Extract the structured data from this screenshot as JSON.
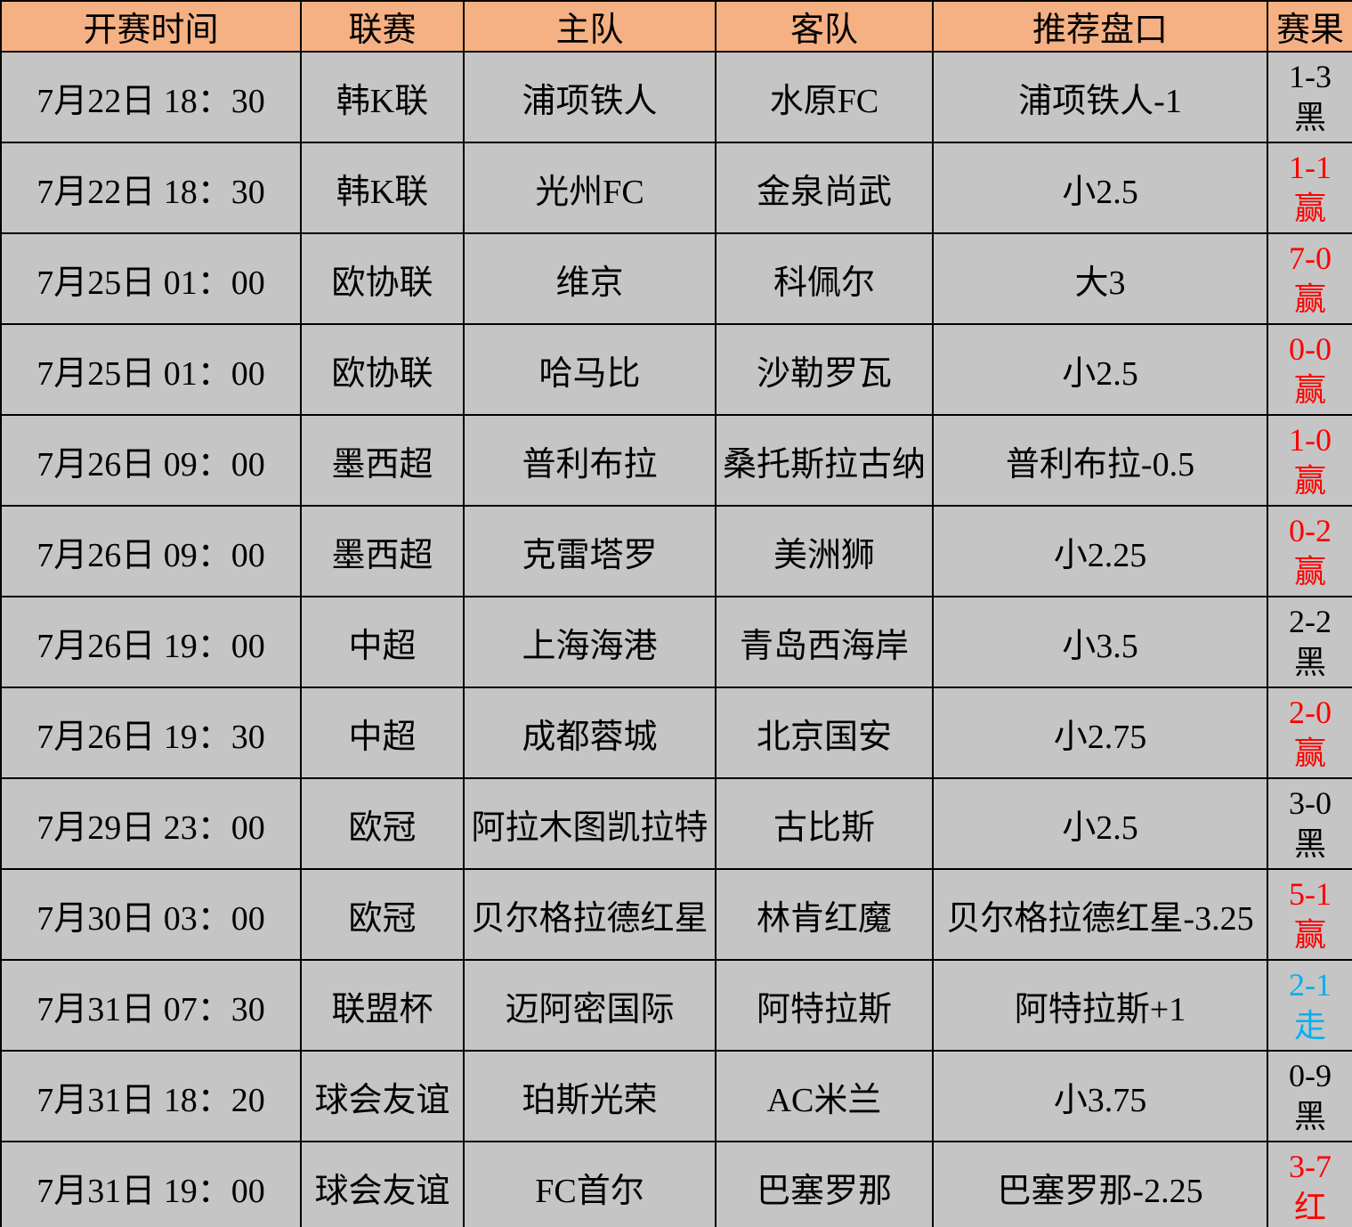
{
  "colors": {
    "header_bg": "#F5B183",
    "row_bg": "#C5C5C5",
    "result_black": "#000000",
    "result_red": "#FF0000",
    "result_blue": "#00B0F0"
  },
  "table": {
    "columns": [
      "开赛时间",
      "联赛",
      "主队",
      "客队",
      "推荐盘口",
      "赛果"
    ],
    "rows": [
      {
        "time": "7月22日 18：30",
        "league": "韩K联",
        "home": "浦项铁人",
        "away": "水原FC",
        "handicap": "浦项铁人-1",
        "result_score": "1-3",
        "result_verdict": "黑",
        "result_color": "result_black"
      },
      {
        "time": "7月22日 18：30",
        "league": "韩K联",
        "home": "光州FC",
        "away": "金泉尚武",
        "handicap": "小2.5",
        "result_score": "1-1",
        "result_verdict": "赢",
        "result_color": "result_red"
      },
      {
        "time": "7月25日 01：00",
        "league": "欧协联",
        "home": "维京",
        "away": "科佩尔",
        "handicap": "大3",
        "result_score": "7-0",
        "result_verdict": "赢",
        "result_color": "result_red"
      },
      {
        "time": "7月25日 01：00",
        "league": "欧协联",
        "home": "哈马比",
        "away": "沙勒罗瓦",
        "handicap": "小2.5",
        "result_score": "0-0",
        "result_verdict": "赢",
        "result_color": "result_red"
      },
      {
        "time": "7月26日 09：00",
        "league": "墨西超",
        "home": "普利布拉",
        "away": "桑托斯拉古纳",
        "handicap": "普利布拉-0.5",
        "result_score": "1-0",
        "result_verdict": "赢",
        "result_color": "result_red"
      },
      {
        "time": "7月26日 09：00",
        "league": "墨西超",
        "home": "克雷塔罗",
        "away": "美洲狮",
        "handicap": "小2.25",
        "result_score": "0-2",
        "result_verdict": "赢",
        "result_color": "result_red"
      },
      {
        "time": "7月26日 19：00",
        "league": "中超",
        "home": "上海海港",
        "away": "青岛西海岸",
        "handicap": "小3.5",
        "result_score": "2-2",
        "result_verdict": "黑",
        "result_color": "result_black"
      },
      {
        "time": "7月26日 19：30",
        "league": "中超",
        "home": "成都蓉城",
        "away": "北京国安",
        "handicap": "小2.75",
        "result_score": "2-0",
        "result_verdict": "赢",
        "result_color": "result_red"
      },
      {
        "time": "7月29日 23：00",
        "league": "欧冠",
        "home": "阿拉木图凯拉特",
        "away": "古比斯",
        "handicap": "小2.5",
        "result_score": "3-0",
        "result_verdict": "黑",
        "result_color": "result_black"
      },
      {
        "time": "7月30日 03：00",
        "league": "欧冠",
        "home": "贝尔格拉德红星",
        "away": "林肯红魔",
        "handicap": "贝尔格拉德红星-3.25",
        "result_score": "5-1",
        "result_verdict": "赢",
        "result_color": "result_red"
      },
      {
        "time": "7月31日 07：30",
        "league": "联盟杯",
        "home": "迈阿密国际",
        "away": "阿特拉斯",
        "handicap": "阿特拉斯+1",
        "result_score": "2-1",
        "result_verdict": "走",
        "result_color": "result_blue"
      },
      {
        "time": "7月31日 18：20",
        "league": "球会友谊",
        "home": "珀斯光荣",
        "away": "AC米兰",
        "handicap": "小3.75",
        "result_score": "0-9",
        "result_verdict": "黑",
        "result_color": "result_black"
      },
      {
        "time": "7月31日 19：00",
        "league": "球会友谊",
        "home": "FC首尔",
        "away": "巴塞罗那",
        "handicap": "巴塞罗那-2.25",
        "result_score": "3-7",
        "result_verdict": "红",
        "result_color": "result_red"
      }
    ]
  }
}
